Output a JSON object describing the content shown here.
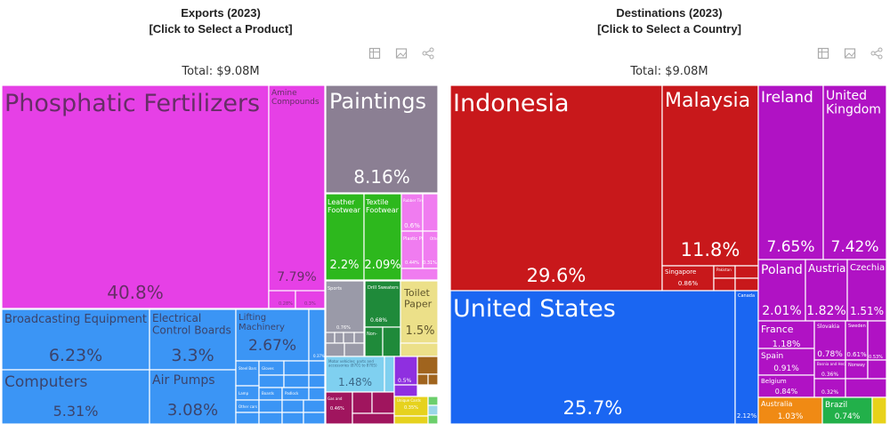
{
  "left_panel": {
    "title_line1": "Exports (2023)",
    "title_line2": "[Click to Select a Product]",
    "total": "Total: $9.08M"
  },
  "right_panel": {
    "title_line1": "Destinations (2023)",
    "title_line2": "[Click to Select a Country]",
    "total": "Total: $9.08M"
  },
  "toolbar_icons": [
    "table-icon",
    "image-icon",
    "share-icon"
  ],
  "chart_data": [
    {
      "type": "treemap",
      "title": "Exports (2023)",
      "total": "$9.08M",
      "items": [
        {
          "label": "Phosphatic Fertilizers",
          "share": 40.8,
          "color": "#e640e6"
        },
        {
          "label": "Amine Compounds",
          "share": 7.79,
          "color": "#e640e6"
        },
        {
          "label": "Paintings",
          "share": 8.16,
          "color": "#8b7f93"
        },
        {
          "label": "Leather Footwear",
          "share": 2.2,
          "color": "#2db81d"
        },
        {
          "label": "Textile Footwear",
          "share": 2.09,
          "color": "#2db81d"
        },
        {
          "label": "Broadcasting Equipment",
          "share": 6.23,
          "color": "#3b95f5"
        },
        {
          "label": "Electrical Control Boards",
          "share": 3.3,
          "color": "#3b95f5"
        },
        {
          "label": "Lifting Machinery",
          "share": 2.67,
          "color": "#3b95f5"
        },
        {
          "label": "Computers",
          "share": 5.31,
          "color": "#3b95f5"
        },
        {
          "label": "Air Pumps",
          "share": 3.08,
          "color": "#3b95f5"
        },
        {
          "label": "Toilet Paper",
          "share": 1.5,
          "color": "#ece089"
        },
        {
          "label": "Motor vehicles; parts and accessories (8701 to 8705)",
          "share": 1.48,
          "color": "#7fd0f0"
        }
      ],
      "small_share_labels": [
        "0.6%",
        "0.44%",
        "0.31%",
        "0.76%",
        "0.68%",
        "0.5%",
        "0.37%",
        "0.46%",
        "0.35%",
        "0.37%",
        "0.3%",
        "0.32%",
        "0.28%"
      ],
      "small_item_labels": [
        "Rubber Tires",
        "Plastic Pipes",
        "Other",
        "Sports",
        "Drill Sweaters",
        "Non-",
        "Gas and",
        "Unique Cards",
        "Prepared",
        "Steel Bars",
        "Gloves",
        "Lamp",
        "Boards",
        "Padlock",
        "Other cars"
      ]
    },
    {
      "type": "treemap",
      "title": "Destinations (2023)",
      "total": "$9.08M",
      "items": [
        {
          "label": "Indonesia",
          "share": 29.6,
          "color": "#c8181b"
        },
        {
          "label": "Malaysia",
          "share": 11.8,
          "color": "#c8181b"
        },
        {
          "label": "Singapore",
          "share": 0.86,
          "color": "#c8181b"
        },
        {
          "label": "Pakistan",
          "share": null,
          "color": "#c8181b"
        },
        {
          "label": "United States",
          "share": 25.7,
          "color": "#1a66f2"
        },
        {
          "label": "Canada",
          "share": 2.12,
          "color": "#1a66f2"
        },
        {
          "label": "Ireland",
          "share": 7.65,
          "color": "#b012c4"
        },
        {
          "label": "United Kingdom",
          "share": 7.42,
          "color": "#b012c4"
        },
        {
          "label": "Poland",
          "share": 2.01,
          "color": "#b012c4"
        },
        {
          "label": "Austria",
          "share": 1.82,
          "color": "#b012c4"
        },
        {
          "label": "Czechia",
          "share": 1.51,
          "color": "#b012c4"
        },
        {
          "label": "France",
          "share": 1.18,
          "color": "#b012c4"
        },
        {
          "label": "Slovakia",
          "share": 0.78,
          "color": "#b012c4"
        },
        {
          "label": "Sweden",
          "share": 0.61,
          "color": "#b012c4"
        },
        {
          "label": "Spain",
          "share": 0.91,
          "color": "#b012c4"
        },
        {
          "label": "Bosnia and Herzegovina",
          "share": 0.36,
          "color": "#b012c4"
        },
        {
          "label": "Belgium",
          "share": 0.84,
          "color": "#b012c4"
        },
        {
          "label": "Norway",
          "share": 0.32,
          "color": "#b012c4"
        },
        {
          "label": "Australia",
          "share": 1.03,
          "color": "#f08a14"
        },
        {
          "label": "Brazil",
          "share": 0.74,
          "color": "#22b04a"
        }
      ],
      "small_share_labels": [
        "0.53%"
      ]
    }
  ]
}
